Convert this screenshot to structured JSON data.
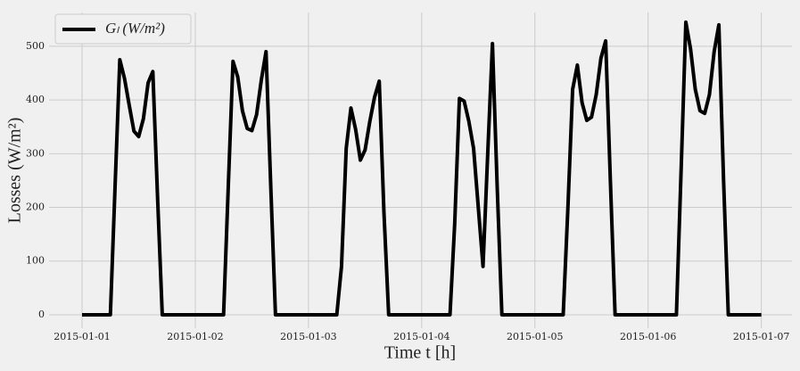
{
  "chart_data": {
    "type": "line",
    "xlabel": "Time t [h]",
    "ylabel": "Losses (W/m²)",
    "x": [
      0,
      1,
      2,
      3,
      4,
      5,
      6,
      7,
      8,
      9,
      10,
      11,
      12,
      13,
      14,
      15,
      16,
      17,
      18,
      19,
      20,
      21,
      22,
      23,
      24,
      25,
      26,
      27,
      28,
      29,
      30,
      31,
      32,
      33,
      34,
      35,
      36,
      37,
      38,
      39,
      40,
      41,
      42,
      43,
      44,
      45,
      46,
      47,
      48,
      49,
      50,
      51,
      52,
      53,
      54,
      55,
      56,
      57,
      58,
      59,
      60,
      61,
      62,
      63,
      64,
      65,
      66,
      67,
      68,
      69,
      70,
      71,
      72,
      73,
      74,
      75,
      76,
      77,
      78,
      79,
      80,
      81,
      82,
      83,
      84,
      85,
      86,
      87,
      88,
      89,
      90,
      91,
      92,
      93,
      94,
      95,
      96,
      97,
      98,
      99,
      100,
      101,
      102,
      103,
      104,
      105,
      106,
      107,
      108,
      109,
      110,
      111,
      112,
      113,
      114,
      115,
      116,
      117,
      118,
      119,
      120,
      121,
      122,
      123,
      124,
      125,
      126,
      127,
      128,
      129,
      130,
      131,
      132,
      133,
      134,
      135,
      136,
      137,
      138,
      139,
      140,
      141,
      142,
      143,
      144
    ],
    "series": [
      {
        "name": "Gₗ (W/m²)",
        "color": "#000000",
        "values": [
          0,
          0,
          0,
          0,
          0,
          0,
          0,
          240,
          475,
          440,
          390,
          342,
          332,
          365,
          432,
          453,
          220,
          0,
          0,
          0,
          0,
          0,
          0,
          0,
          0,
          0,
          0,
          0,
          0,
          0,
          0,
          240,
          472,
          443,
          380,
          347,
          343,
          373,
          437,
          490,
          240,
          0,
          0,
          0,
          0,
          0,
          0,
          0,
          0,
          0,
          0,
          0,
          0,
          0,
          0,
          90,
          310,
          385,
          345,
          288,
          307,
          360,
          405,
          435,
          190,
          0,
          0,
          0,
          0,
          0,
          0,
          0,
          0,
          0,
          0,
          0,
          0,
          0,
          0,
          170,
          403,
          398,
          360,
          310,
          200,
          90,
          300,
          505,
          240,
          0,
          0,
          0,
          0,
          0,
          0,
          0,
          0,
          0,
          0,
          0,
          0,
          0,
          0,
          200,
          420,
          465,
          395,
          362,
          368,
          410,
          478,
          510,
          250,
          0,
          0,
          0,
          0,
          0,
          0,
          0,
          0,
          0,
          0,
          0,
          0,
          0,
          0,
          270,
          545,
          495,
          420,
          380,
          375,
          410,
          490,
          540,
          250,
          0,
          0,
          0,
          0,
          0,
          0,
          0,
          0
        ]
      }
    ],
    "xlim": [
      -7,
      150.5
    ],
    "ylim": [
      -25,
      563
    ],
    "xticks": [
      {
        "value": 0,
        "label": "2015-01-01"
      },
      {
        "value": 24,
        "label": "2015-01-02"
      },
      {
        "value": 48,
        "label": "2015-01-03"
      },
      {
        "value": 72,
        "label": "2015-01-04"
      },
      {
        "value": 96,
        "label": "2015-01-05"
      },
      {
        "value": 120,
        "label": "2015-01-06"
      },
      {
        "value": 144,
        "label": "2015-01-07"
      }
    ],
    "yticks": [
      0,
      100,
      200,
      300,
      400,
      500
    ],
    "grid": true,
    "legend": "upper left"
  }
}
